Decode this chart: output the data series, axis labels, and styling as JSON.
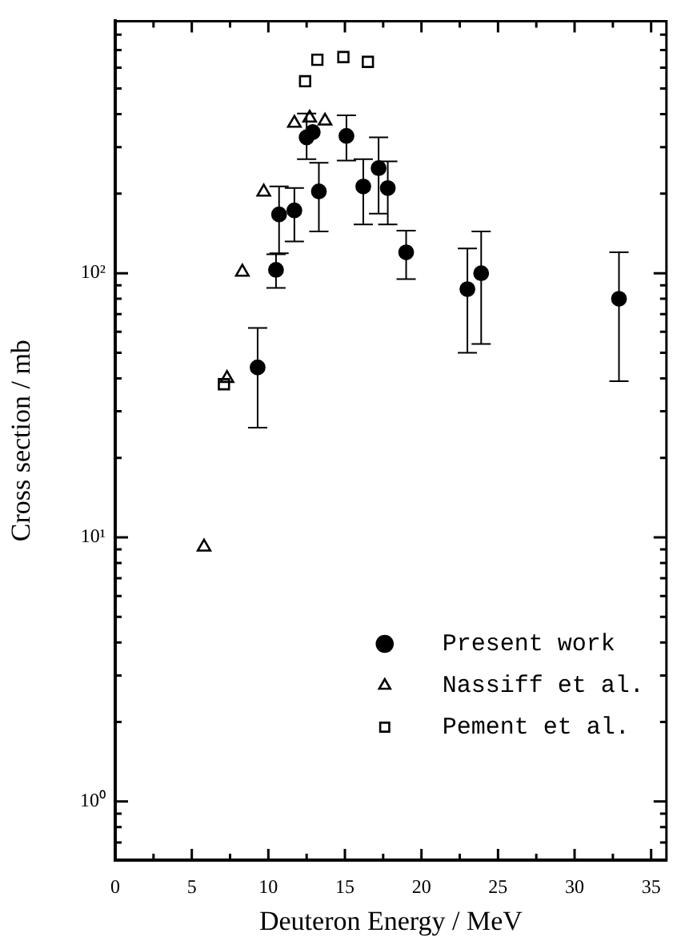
{
  "chart_data": {
    "type": "scatter",
    "xlabel": "Deuteron Energy / MeV",
    "ylabel": "Cross section / mb",
    "log": "y",
    "legend": "bottom right",
    "grid": false,
    "xlim": [
      0,
      36
    ],
    "xticks": [
      0,
      {
        "value": 2.5,
        "label": null
      },
      5,
      {
        "value": 7.5,
        "label": null
      },
      10,
      {
        "value": 12.5,
        "label": null
      },
      15,
      {
        "value": 17.5,
        "label": null
      },
      20,
      {
        "value": 22.5,
        "label": null
      },
      25,
      {
        "value": 27.5,
        "label": null
      },
      30,
      {
        "value": 32.5,
        "label": null
      },
      35
    ],
    "ylim": [
      0.6,
      900
    ],
    "yticks": [
      {
        "value": 0.6,
        "label": null
      },
      {
        "value": 0.7,
        "label": null
      },
      {
        "value": 0.8,
        "label": null
      },
      {
        "value": 0.9,
        "label": null
      },
      {
        "value": 1,
        "label": "10⁰"
      },
      {
        "value": 2,
        "label": null
      },
      {
        "value": 3,
        "label": null
      },
      {
        "value": 4,
        "label": null
      },
      {
        "value": 5,
        "label": null
      },
      {
        "value": 6,
        "label": null
      },
      {
        "value": 7,
        "label": null
      },
      {
        "value": 8,
        "label": null
      },
      {
        "value": 9,
        "label": null
      },
      {
        "value": 10,
        "label": "10¹"
      },
      {
        "value": 20,
        "label": null
      },
      {
        "value": 30,
        "label": null
      },
      {
        "value": 40,
        "label": null
      },
      {
        "value": 50,
        "label": null
      },
      {
        "value": 60,
        "label": null
      },
      {
        "value": 70,
        "label": null
      },
      {
        "value": 80,
        "label": null
      },
      {
        "value": 90,
        "label": null
      },
      {
        "value": 100,
        "label": "10²"
      },
      {
        "value": 200,
        "label": null
      },
      {
        "value": 300,
        "label": null
      },
      {
        "value": 400,
        "label": null
      },
      {
        "value": 500,
        "label": null
      },
      {
        "value": 600,
        "label": null
      },
      {
        "value": 700,
        "label": null
      },
      {
        "value": 800,
        "label": null
      }
    ],
    "series": [
      {
        "name": "Present work",
        "color": "#000000",
        "marker": "circle",
        "x": [
          9.3,
          10.5,
          10.7,
          11.7,
          12.5,
          12.9,
          13.3,
          15.1,
          16.2,
          17.2,
          17.8,
          19.0,
          23.0,
          23.9,
          32.9
        ],
        "values": [
          44,
          103,
          167,
          173,
          327,
          342,
          204,
          331,
          213,
          250,
          210,
          120,
          87,
          100,
          80
        ],
        "errors": [
          [
            26,
            62
          ],
          [
            88,
            118
          ],
          [
            119,
            213
          ],
          [
            132,
            210
          ],
          [
            270,
            402
          ],
          null,
          [
            144,
            262
          ],
          [
            267,
            396
          ],
          [
            153,
            270
          ],
          [
            168,
            327
          ],
          [
            153,
            265
          ],
          [
            95,
            145
          ],
          [
            50,
            124
          ],
          [
            54,
            144
          ],
          [
            39,
            120
          ]
        ]
      },
      {
        "name": "Nassiff et al.",
        "color": "#000000",
        "marker": "triangle",
        "x": [
          5.8,
          7.3,
          8.3,
          9.7,
          11.7,
          12.7,
          13.7
        ],
        "values": [
          9.2,
          40,
          101,
          203,
          370,
          387,
          377
        ]
      },
      {
        "name": "Pement et al.",
        "color": "#000000",
        "marker": "square",
        "x": [
          7.1,
          12.4,
          13.2,
          14.9,
          16.5
        ],
        "values": [
          38,
          533,
          643,
          658,
          631
        ]
      }
    ]
  }
}
